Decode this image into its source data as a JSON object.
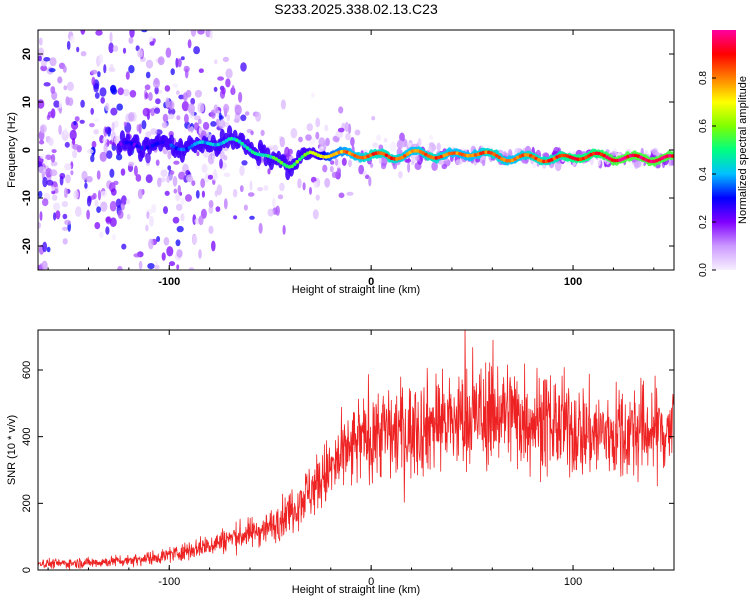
{
  "title": "S233.2025.338.02.13.C23",
  "colors": {
    "snr_line": "#ee2222",
    "axis": "#000000",
    "colorbar_stops": [
      "#f7f0ff",
      "#cc99ff",
      "#8000ff",
      "#0000ff",
      "#00c0ff",
      "#00ff80",
      "#80ff00",
      "#ffff00",
      "#ff8000",
      "#ff0000",
      "#ff00a0"
    ]
  },
  "chart_data": [
    {
      "type": "heatmap",
      "name": "spectrogram",
      "title": "S233.2025.338.02.13.C23",
      "xlabel": "Height of straight line (km)",
      "ylabel": "Frequency (Hz)",
      "xlim": [
        -165,
        150
      ],
      "ylim": [
        -25,
        25
      ],
      "xticks": [
        -100,
        0,
        100
      ],
      "yticks": [
        -20,
        -10,
        0,
        10,
        20
      ],
      "colorbar": {
        "label": "Normalized spectral amplitude",
        "range": [
          0,
          1
        ],
        "ticks": [
          "0.0",
          "0.2",
          "0.4",
          "0.6",
          "0.8"
        ],
        "tick_values": [
          0.0,
          0.2,
          0.4,
          0.6,
          0.8
        ]
      },
      "ridge": {
        "x": [
          -165,
          -140,
          -120,
          -100,
          -90,
          -80,
          -70,
          -60,
          -50,
          -40,
          -30,
          -20,
          -10,
          0,
          10,
          20,
          30,
          40,
          50,
          60,
          70,
          80,
          90,
          100,
          110,
          120,
          130,
          140,
          150
        ],
        "y": [
          0,
          0.5,
          1,
          1,
          0.5,
          1.5,
          2,
          0.5,
          -2,
          -3,
          -1,
          -0.8,
          -1,
          -1,
          -1.5,
          -0.7,
          -1,
          -1.3,
          -0.5,
          -1.2,
          -1.8,
          -1.5,
          -2,
          -1.4,
          -1.2,
          -1.6,
          -1.7,
          -1.8,
          -1.8
        ],
        "amplitude": [
          0.15,
          0.2,
          0.25,
          0.3,
          0.35,
          0.4,
          0.45,
          0.45,
          0.5,
          0.55,
          0.6,
          0.75,
          0.8,
          0.85,
          0.85,
          0.8,
          0.85,
          0.8,
          0.8,
          0.85,
          0.8,
          0.85,
          0.85,
          0.9,
          0.9,
          0.95,
          0.95,
          0.95,
          0.95
        ]
      }
    },
    {
      "type": "line",
      "name": "snr",
      "xlabel": "Height of straight line (km)",
      "ylabel": "SNR (10 * v/v)",
      "xlim": [
        -165,
        150
      ],
      "ylim": [
        0,
        720
      ],
      "xticks": [
        -100,
        0,
        100
      ],
      "yticks": [
        0,
        200,
        400,
        600
      ],
      "series": [
        {
          "name": "SNR",
          "x": [
            -165,
            -150,
            -140,
            -130,
            -120,
            -110,
            -100,
            -90,
            -80,
            -70,
            -60,
            -50,
            -45,
            -40,
            -35,
            -30,
            -25,
            -20,
            -15,
            -10,
            -5,
            0,
            5,
            10,
            15,
            20,
            25,
            30,
            35,
            40,
            45,
            50,
            55,
            60,
            65,
            70,
            75,
            80,
            85,
            90,
            95,
            100,
            110,
            120,
            130,
            140,
            150
          ],
          "y": [
            20,
            20,
            22,
            25,
            30,
            35,
            45,
            60,
            75,
            95,
            110,
            130,
            150,
            180,
            210,
            240,
            270,
            300,
            330,
            360,
            390,
            410,
            420,
            410,
            415,
            420,
            430,
            440,
            450,
            440,
            450,
            455,
            460,
            470,
            480,
            470,
            460,
            455,
            445,
            440,
            430,
            420,
            410,
            410,
            415,
            420,
            420
          ]
        }
      ]
    }
  ]
}
